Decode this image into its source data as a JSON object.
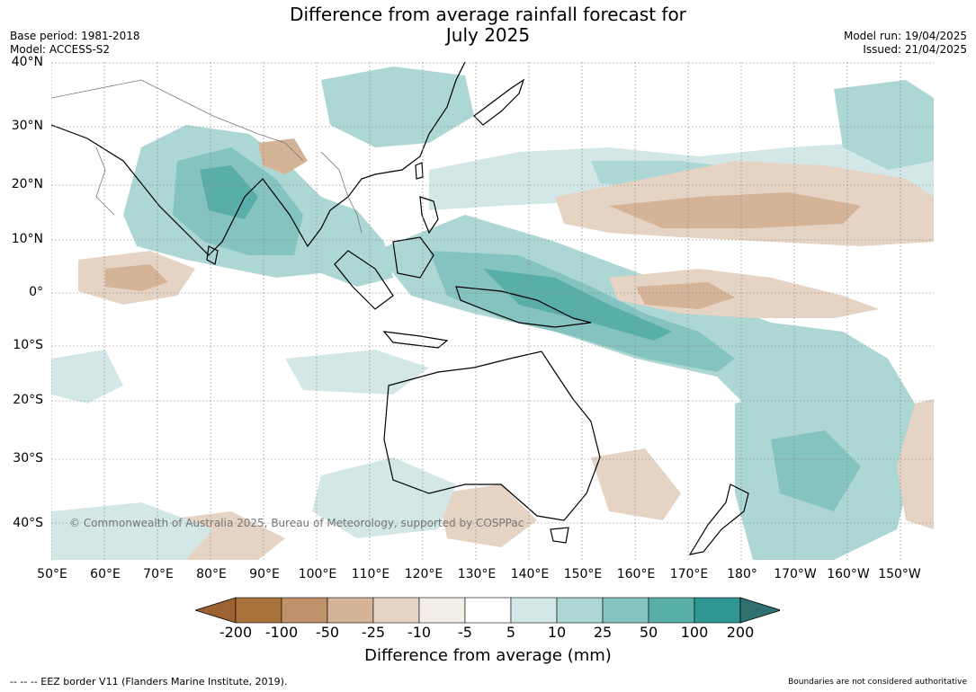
{
  "title_line1": "Difference from average rainfall forecast for",
  "title_line2": "July 2025",
  "base_period": "Base period: 1981-2018",
  "model": "Model: ACCESS-S2",
  "model_run": "Model run: 19/04/2025",
  "issued": "Issued: 21/04/2025",
  "lat_labels": [
    "40°N",
    "30°N",
    "20°N",
    "10°N",
    "0°",
    "10°S",
    "20°S",
    "30°S",
    "40°S"
  ],
  "lon_labels": [
    "50°E",
    "60°E",
    "70°E",
    "80°E",
    "90°E",
    "100°E",
    "110°E",
    "120°E",
    "130°E",
    "140°E",
    "150°E",
    "160°E",
    "170°E",
    "180°",
    "170°W",
    "160°W",
    "150°W"
  ],
  "colorbar": {
    "ticks": [
      "-200",
      "-100",
      "-50",
      "-25",
      "-10",
      "-5",
      "5",
      "10",
      "25",
      "50",
      "100",
      "200"
    ],
    "colors": [
      "#9c6232",
      "#a9723d",
      "#c0926a",
      "#d4b396",
      "#e5d3c3",
      "#f3ede7",
      "#ffffff",
      "#d3e8e6",
      "#acd7d4",
      "#84c3bf",
      "#5aaeaa",
      "#2e9792",
      "#2f7170"
    ],
    "label": "Difference from average (mm)"
  },
  "copyright": "© Commonwealth of Australia 2025, Bureau of Meteorology, supported by COSPPac",
  "eez_note": "--  --  -- EEZ border V11 (Flanders Marine Institute, 2019).",
  "boundaries_note": "Boundaries are not considered authoritative"
}
